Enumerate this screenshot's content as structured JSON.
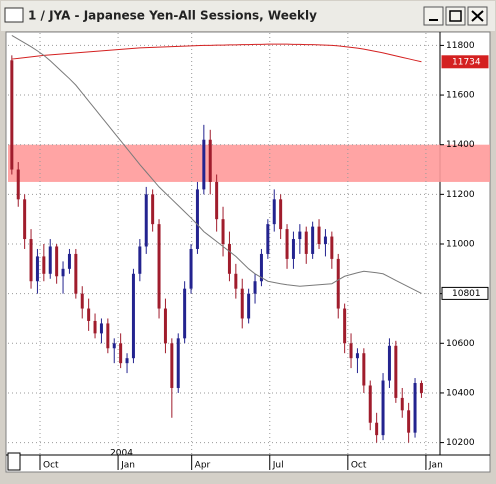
{
  "chart_data": {
    "type": "candlestick",
    "title": "1 / JYA - Japanese Yen-All Sessions, Weekly",
    "ylim": [
      10150,
      11850
    ],
    "yticks": [
      10200,
      10400,
      10600,
      10800,
      11000,
      11200,
      11400,
      11600,
      11800
    ],
    "xlim": [
      -0.6,
      66.9
    ],
    "xticks": [
      {
        "value": 4.4,
        "label": "Oct"
      },
      {
        "value": 16.6,
        "label": "Jan"
      },
      {
        "value": 28.1,
        "label": "Apr"
      },
      {
        "value": 40.3,
        "label": "Jul"
      },
      {
        "value": 52.5,
        "label": "Oct"
      },
      {
        "value": 64.7,
        "label": "Jan"
      }
    ],
    "year_label": {
      "tick": 1,
      "text": "2004"
    },
    "grid": true,
    "up_color": "#23238f",
    "down_color": "#a01c2c",
    "band": {
      "from": 11250,
      "to": 11400,
      "color": "#ff9a9a"
    },
    "open": [
      11740,
      11300,
      11180,
      11020,
      10850,
      10950,
      10880,
      10990,
      10870,
      10900,
      10960,
      10800,
      10740,
      10690,
      10640,
      10680,
      10580,
      10600,
      10520,
      10540,
      10880,
      10990,
      11200,
      11080,
      10740,
      10600,
      10420,
      10620,
      10820,
      10980,
      11220,
      11420,
      11250,
      11100,
      11000,
      10880,
      10820,
      10700,
      10800,
      10850,
      10960,
      11080,
      11180,
      11060,
      10940,
      11020,
      11050,
      10960,
      11070,
      11000,
      11030,
      10940,
      10740,
      10600,
      10540,
      10560,
      10430,
      10280,
      10230,
      10450,
      10590,
      10380,
      10330,
      10240,
      10440
    ],
    "high": [
      11760,
      11330,
      11200,
      11060,
      10980,
      11000,
      11020,
      11000,
      10930,
      10980,
      10980,
      10830,
      10780,
      10720,
      10700,
      10700,
      10620,
      10640,
      10560,
      10900,
      11020,
      11230,
      11220,
      11100,
      10780,
      10620,
      10640,
      10850,
      11000,
      11250,
      11480,
      11460,
      11280,
      11150,
      11050,
      10920,
      10860,
      10820,
      10880,
      10980,
      11100,
      11220,
      11200,
      11080,
      11050,
      11080,
      11070,
      11090,
      11100,
      11060,
      11050,
      10960,
      10760,
      10640,
      10580,
      10580,
      10450,
      10320,
      10480,
      10620,
      10610,
      10420,
      10360,
      10460,
      10450
    ],
    "low": [
      11280,
      11150,
      10980,
      10820,
      10800,
      10850,
      10860,
      10840,
      10800,
      10880,
      10780,
      10700,
      10650,
      10620,
      10600,
      10560,
      10520,
      10500,
      10480,
      10520,
      10850,
      10960,
      11050,
      10700,
      10560,
      10300,
      10400,
      10600,
      10800,
      10960,
      11200,
      11200,
      11050,
      10950,
      10850,
      10780,
      10660,
      10680,
      10760,
      10830,
      10940,
      11050,
      11020,
      10900,
      10900,
      10960,
      10920,
      10940,
      10980,
      10950,
      10900,
      10700,
      10560,
      10500,
      10480,
      10400,
      10250,
      10200,
      10210,
      10420,
      10360,
      10300,
      10200,
      10220,
      10380
    ],
    "close": [
      11300,
      11180,
      11020,
      10850,
      10950,
      10880,
      10990,
      10870,
      10900,
      10960,
      10800,
      10740,
      10690,
      10640,
      10680,
      10580,
      10600,
      10520,
      10540,
      10880,
      10990,
      11200,
      11080,
      10740,
      10600,
      10420,
      10620,
      10820,
      10980,
      11220,
      11420,
      11250,
      11100,
      11000,
      10880,
      10820,
      10700,
      10800,
      10850,
      10960,
      11080,
      11180,
      11060,
      10940,
      11020,
      11050,
      10960,
      11070,
      11000,
      11030,
      10940,
      10740,
      10600,
      10540,
      10560,
      10430,
      10280,
      10230,
      10450,
      10590,
      10380,
      10330,
      10240,
      10440,
      10400
    ],
    "series": [
      {
        "color": "#d42020",
        "last_label": "11734",
        "values": [
          11745,
          11748,
          11751,
          11754,
          11757,
          11760,
          11762,
          11764,
          11766,
          11768,
          11770,
          11772,
          11774,
          11776,
          11778,
          11780,
          11782,
          11784,
          11786,
          11788,
          11790,
          11791,
          11792,
          11793,
          11794,
          11795,
          11796,
          11797,
          11798,
          11799,
          11800,
          11800,
          11801,
          11801,
          11802,
          11802,
          11803,
          11803,
          11804,
          11804,
          11805,
          11805,
          11805,
          11805,
          11804,
          11804,
          11803,
          11803,
          11802,
          11801,
          11800,
          11798,
          11795,
          11792,
          11789,
          11785,
          11780,
          11775,
          11770,
          11764,
          11758,
          11752,
          11746,
          11740,
          11734
        ]
      },
      {
        "color": "#7a7a7a",
        "last_label": "10801",
        "values": [
          11840,
          11825,
          11810,
          11795,
          11778,
          11760,
          11738,
          11714,
          11690,
          11666,
          11640,
          11608,
          11576,
          11544,
          11512,
          11480,
          11448,
          11416,
          11384,
          11352,
          11320,
          11290,
          11260,
          11230,
          11205,
          11180,
          11155,
          11130,
          11105,
          11078,
          11050,
          11030,
          11010,
          10990,
          10970,
          10950,
          10925,
          10900,
          10880,
          10865,
          10850,
          10845,
          10840,
          10836,
          10833,
          10830,
          10832,
          10834,
          10836,
          10838,
          10840,
          10855,
          10870,
          10877,
          10884,
          10890,
          10887,
          10884,
          10880,
          10867,
          10853,
          10840,
          10827,
          10814,
          10801
        ]
      }
    ]
  }
}
